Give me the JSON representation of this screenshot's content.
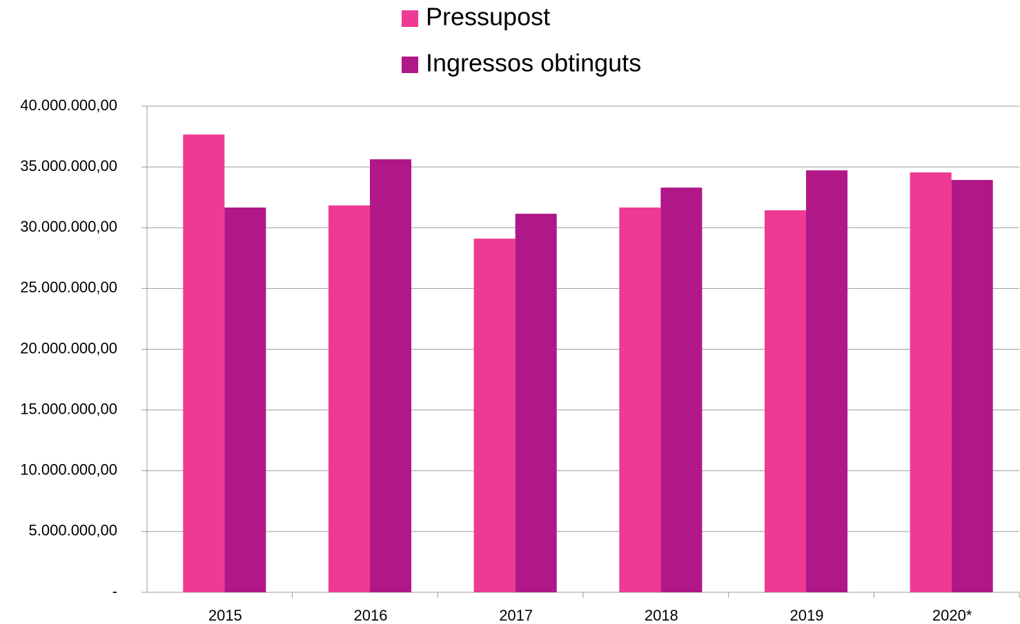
{
  "chart_data": {
    "type": "bar",
    "categories": [
      "2015",
      "2016",
      "2017",
      "2018",
      "2019",
      "2020*"
    ],
    "series": [
      {
        "name": "Pressupost",
        "color": "#ee3a93",
        "values": [
          37670000,
          31830000,
          29100000,
          31660000,
          31430000,
          34550000
        ]
      },
      {
        "name": "Ingressos obtinguts",
        "color": "#b01887",
        "values": [
          31660000,
          35630000,
          31150000,
          33300000,
          34720000,
          33930000
        ]
      }
    ],
    "ylim": [
      0,
      40000000
    ],
    "yticks": [
      {
        "value": 0,
        "label": "-"
      },
      {
        "value": 5000000,
        "label": "5.000.000,00"
      },
      {
        "value": 10000000,
        "label": "10.000.000,00"
      },
      {
        "value": 15000000,
        "label": "15.000.000,00"
      },
      {
        "value": 20000000,
        "label": "20.000.000,00"
      },
      {
        "value": 25000000,
        "label": "25.000.000,00"
      },
      {
        "value": 30000000,
        "label": "30.000.000,00"
      },
      {
        "value": 35000000,
        "label": "35.000.000,00"
      },
      {
        "value": 40000000,
        "label": "40.000.000,00"
      }
    ],
    "grid": true,
    "legend": "top"
  }
}
